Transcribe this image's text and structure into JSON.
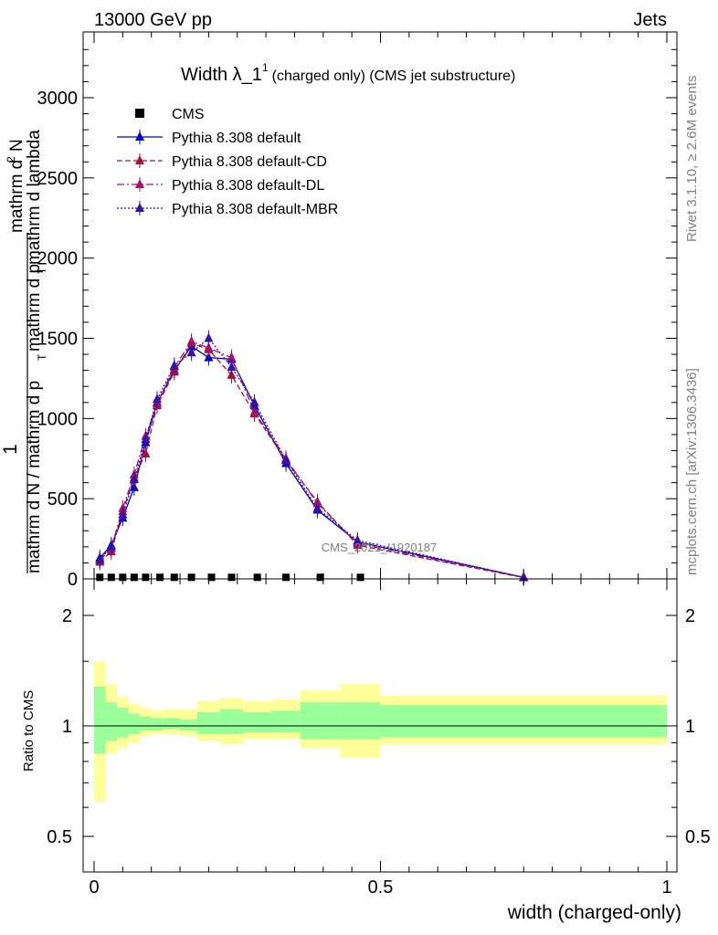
{
  "header": {
    "energy": "13000 GeV pp",
    "process": "Jets"
  },
  "side_labels": {
    "rivet": "Rivet 3.1.10, ≥ 2.6M events",
    "mcplots": "mcplots.cern.ch [arXiv:1306.3436]"
  },
  "watermark": "CMS_2021_I1920187",
  "chart_data": [
    {
      "type": "line",
      "title_main": "Width λ_1",
      "title_sup": "1",
      "title_sub": "(charged only) (CMS jet substructure)",
      "xlabel": "width (charged-only)",
      "ylabel": {
        "numerator_top": "mathrm d",
        "numerator_sup": "2",
        "numerator_rest": "N",
        "prefix": "1",
        "denominator": "mathrm d N / mathrm d p",
        "denominator_sub": "T",
        "right_top": "mathrm d p",
        "right_top_sub": "T",
        "right_top_rest": " mathrm d lambda"
      },
      "xlim": [
        0,
        1
      ],
      "ylim": [
        0,
        3400
      ],
      "y_ticks": [
        0,
        500,
        1000,
        1500,
        2000,
        2500,
        3000
      ],
      "y_tick_labels": [
        "0",
        "500",
        "1000",
        "1500",
        "2000",
        "2500",
        "3000"
      ],
      "legend_position": "top-left",
      "legend": [
        {
          "name": "CMS",
          "marker": "square",
          "color": "#000000",
          "dash": "none"
        },
        {
          "name": "Pythia 8.308 default",
          "marker": "triangle",
          "color": "#0000cc",
          "dash": "solid"
        },
        {
          "name": "Pythia 8.308 default-CD",
          "marker": "triangle",
          "color": "#aa1133",
          "dash": "dashed"
        },
        {
          "name": "Pythia 8.308 default-DL",
          "marker": "triangle",
          "color": "#aa1166",
          "dash": "dashdot"
        },
        {
          "name": "Pythia 8.308 default-MBR",
          "marker": "triangle",
          "color": "#3311aa",
          "dash": "dotted"
        }
      ],
      "cms_points": {
        "x": [
          0.01,
          0.03,
          0.05,
          0.07,
          0.09,
          0.115,
          0.14,
          0.17,
          0.205,
          0.24,
          0.285,
          0.335,
          0.395,
          0.465
        ],
        "y": [
          4,
          4,
          4,
          4,
          4,
          4,
          4,
          4,
          4,
          4,
          4,
          4,
          4,
          4
        ]
      },
      "series": [
        {
          "name": "Pythia 8.308 default",
          "color": "#0000cc",
          "x": [
            0.01,
            0.03,
            0.05,
            0.07,
            0.09,
            0.11,
            0.14,
            0.17,
            0.2,
            0.24,
            0.28,
            0.335,
            0.39,
            0.46,
            0.75
          ],
          "y": [
            130,
            210,
            380,
            570,
            850,
            1100,
            1300,
            1450,
            1380,
            1370,
            1080,
            720,
            430,
            230,
            10
          ]
        },
        {
          "name": "Pythia 8.308 default-CD",
          "color": "#aa1133",
          "x": [
            0.01,
            0.03,
            0.05,
            0.07,
            0.09,
            0.11,
            0.14,
            0.17,
            0.2,
            0.24,
            0.28,
            0.335,
            0.39,
            0.46,
            0.75
          ],
          "y": [
            105,
            170,
            420,
            630,
            780,
            1080,
            1290,
            1470,
            1430,
            1270,
            1030,
            740,
            480,
            210,
            8
          ]
        },
        {
          "name": "Pythia 8.308 default-DL",
          "color": "#aa1166",
          "x": [
            0.01,
            0.03,
            0.05,
            0.07,
            0.09,
            0.11,
            0.14,
            0.17,
            0.2,
            0.24,
            0.28,
            0.335,
            0.39,
            0.46,
            0.75
          ],
          "y": [
            115,
            190,
            440,
            650,
            890,
            1090,
            1320,
            1480,
            1440,
            1380,
            1040,
            750,
            470,
            220,
            9
          ]
        },
        {
          "name": "Pythia 8.308 default-MBR",
          "color": "#3311aa",
          "x": [
            0.01,
            0.03,
            0.05,
            0.07,
            0.09,
            0.11,
            0.14,
            0.17,
            0.2,
            0.24,
            0.28,
            0.335,
            0.39,
            0.46,
            0.75
          ],
          "y": [
            120,
            200,
            400,
            620,
            870,
            1120,
            1330,
            1410,
            1500,
            1320,
            1100,
            740,
            440,
            240,
            9
          ]
        }
      ]
    },
    {
      "type": "area",
      "ylabel": "Ratio to CMS",
      "xlabel": "width (charged-only)",
      "xlim": [
        0,
        1
      ],
      "ylim": [
        0.39,
        2.3
      ],
      "y_ticks": [
        0.5,
        1,
        2
      ],
      "y_tick_labels": [
        "0.5",
        "1",
        "2"
      ],
      "x_ticks": [
        0,
        0.5,
        1
      ],
      "x_tick_labels": [
        "0",
        "0.5",
        "1"
      ],
      "bin_edges": [
        0,
        0.02,
        0.04,
        0.06,
        0.08,
        0.1,
        0.12,
        0.15,
        0.18,
        0.22,
        0.26,
        0.31,
        0.36,
        0.43,
        0.5,
        1.0
      ],
      "band_yellow_low": [
        0.62,
        0.84,
        0.87,
        0.9,
        0.94,
        0.95,
        0.95,
        0.94,
        0.91,
        0.89,
        0.92,
        0.92,
        0.87,
        0.82,
        0.89
      ],
      "band_yellow_high": [
        1.5,
        1.3,
        1.2,
        1.15,
        1.12,
        1.1,
        1.11,
        1.11,
        1.17,
        1.19,
        1.17,
        1.18,
        1.25,
        1.3,
        1.21
      ],
      "band_green_low": [
        0.84,
        0.91,
        0.93,
        0.95,
        0.97,
        0.97,
        0.98,
        0.97,
        0.95,
        0.95,
        0.96,
        0.96,
        0.92,
        0.92,
        0.93
      ],
      "band_green_high": [
        1.28,
        1.16,
        1.12,
        1.08,
        1.06,
        1.05,
        1.05,
        1.04,
        1.09,
        1.11,
        1.09,
        1.1,
        1.16,
        1.16,
        1.14
      ],
      "colors": {
        "yellow": "#ffff99",
        "green": "#99ff99"
      }
    }
  ]
}
